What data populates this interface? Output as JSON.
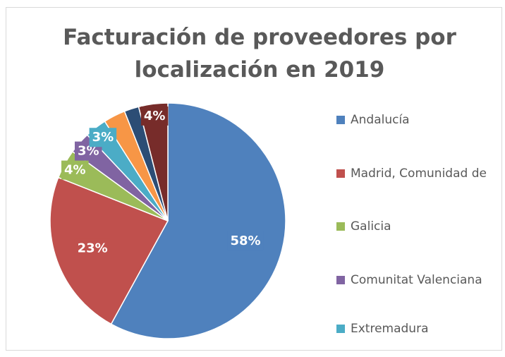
{
  "chart_data": {
    "type": "pie",
    "title": "Facturación de proveedores por localización en 2019",
    "categories": [
      "Andalucía",
      "Madrid, Comunidad de",
      "Galicia",
      "Comunitat Valenciana",
      "Extremadura",
      null,
      null,
      null
    ],
    "values": [
      58,
      23,
      4,
      3,
      3,
      3,
      2,
      4
    ],
    "value_labels": [
      "58%",
      "23%",
      "4%",
      "3%",
      "3%",
      null,
      null,
      "4%"
    ],
    "colors": [
      "#4f81bd",
      "#c0504d",
      "#9bbb59",
      "#8064a2",
      "#4bacc6",
      "#f79646",
      "#2c4d75",
      "#772c2a"
    ],
    "legend": "right"
  }
}
